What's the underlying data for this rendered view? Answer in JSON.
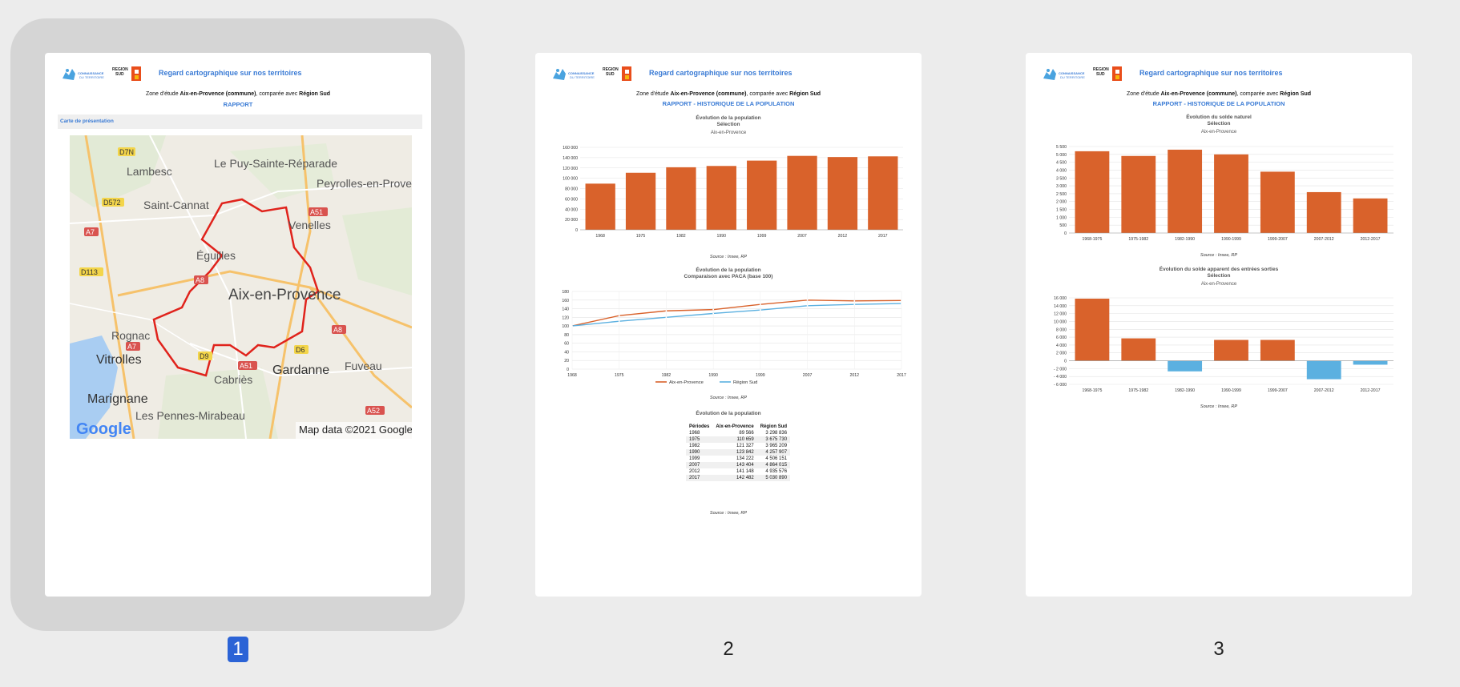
{
  "header": {
    "title": "Regard cartographique sur nos territoires",
    "logo1_text": "CONNAISSANCE DU TERRITOIRE",
    "logo2_text": "REGION SUD"
  },
  "zone": {
    "prefix": "Zone d'étude",
    "commune": "Aix-en-Provence (commune)",
    "middle": ", comparée avec",
    "region": "Région Sud"
  },
  "pages": [
    {
      "number": "1",
      "selected": true,
      "subtitle": "RAPPORT"
    },
    {
      "number": "2",
      "selected": false,
      "subtitle": "RAPPORT - HISTORIQUE DE LA POPULATION"
    },
    {
      "number": "3",
      "selected": false,
      "subtitle": "RAPPORT - HISTORIQUE DE LA POPULATION"
    }
  ],
  "page1": {
    "section_title": "Carte de présentation",
    "map": {
      "labels": [
        {
          "text": "Lambesc"
        },
        {
          "text": "Le Puy-Sainte-Réparade"
        },
        {
          "text": "Saint-Cannat"
        },
        {
          "text": "Peyrolles-en-Prove"
        },
        {
          "text": "Venelles"
        },
        {
          "text": "Éguilles"
        },
        {
          "text": "Aix-en-Provence"
        },
        {
          "text": "Rognac"
        },
        {
          "text": "Vitrolles"
        },
        {
          "text": "Cabriès"
        },
        {
          "text": "Gardanne"
        },
        {
          "text": "Fuveau"
        },
        {
          "text": "Marignane"
        },
        {
          "text": "Les Pennes-Mirabeau"
        }
      ],
      "road_badges": [
        {
          "text": "D7N",
          "color": "#f3d54a"
        },
        {
          "text": "D572",
          "color": "#f3d54a"
        },
        {
          "text": "A7",
          "color": "#d9534f"
        },
        {
          "text": "A51",
          "color": "#d9534f"
        },
        {
          "text": "D113",
          "color": "#f3d54a"
        },
        {
          "text": "A8",
          "color": "#d9534f"
        },
        {
          "text": "A8",
          "color": "#d9534f"
        },
        {
          "text": "A7",
          "color": "#d9534f"
        },
        {
          "text": "D9",
          "color": "#f3d54a"
        },
        {
          "text": "D6",
          "color": "#f3d54a"
        },
        {
          "text": "A51",
          "color": "#d9534f"
        },
        {
          "text": "A52",
          "color": "#d9534f"
        }
      ],
      "attribution": "Map data ©2021 Google",
      "logo": "Google"
    }
  },
  "page2": {
    "chart1_title": "Évolution de la population",
    "chart1_subtitle": "Sélection",
    "chart1_place": "Aix-en-Provence",
    "chart2_title": "Évolution de la population",
    "chart2_subtitle": "Comparaison avec PACA (base 100)",
    "table_title": "Évolution de la population",
    "source": "Source : Insee, RP",
    "table_headers": [
      "Périodes",
      "Aix-en-Provence",
      "Région Sud"
    ],
    "table_rows": [
      [
        "1968",
        "89 566",
        "3 298 836"
      ],
      [
        "1975",
        "110 659",
        "3 675 730"
      ],
      [
        "1982",
        "121 327",
        "3 965 209"
      ],
      [
        "1990",
        "123 842",
        "4 257 907"
      ],
      [
        "1999",
        "134 222",
        "4 506 151"
      ],
      [
        "2007",
        "143 404",
        "4 864 015"
      ],
      [
        "2012",
        "141 148",
        "4 935 576"
      ],
      [
        "2017",
        "142 482",
        "5 030 890"
      ]
    ]
  },
  "page3": {
    "chart1_title": "Évolution du solde naturel",
    "chart1_subtitle": "Sélection",
    "chart1_place": "Aix-en-Provence",
    "chart2_title": "Évolution du solde apparent des entrées sorties",
    "chart2_subtitle": "Sélection",
    "chart2_place": "Aix-en-Provence",
    "source": "Source : Insee, RP"
  },
  "colors": {
    "orange": "#d9622b",
    "blue": "#5bb0e0",
    "link": "#3a7bd5",
    "selection": "#2b63d6"
  },
  "chart_data": [
    {
      "type": "bar",
      "title": "Évolution de la population",
      "categories": [
        "1968",
        "1975",
        "1982",
        "1990",
        "1999",
        "2007",
        "2012",
        "2017"
      ],
      "values": [
        89566,
        110659,
        121327,
        123842,
        134222,
        143404,
        141148,
        142482
      ],
      "ylim": [
        0,
        160000
      ],
      "yticks": [
        "0",
        "20 000",
        "40 000",
        "60 000",
        "80 000",
        "100 000",
        "120 000",
        "140 000",
        "160 000"
      ]
    },
    {
      "type": "line",
      "title": "Évolution de la population",
      "categories": [
        "1968",
        "1975",
        "1982",
        "1990",
        "1999",
        "2007",
        "2012",
        "2017"
      ],
      "series": [
        {
          "name": "Aix-en-Provence",
          "values": [
            100,
            124,
            135,
            138,
            150,
            160,
            158,
            159
          ]
        },
        {
          "name": "Région Sud",
          "values": [
            100,
            111,
            120,
            129,
            137,
            147,
            150,
            152
          ]
        }
      ],
      "ylim": [
        0,
        180
      ],
      "yticks": [
        "0",
        "20",
        "40",
        "60",
        "80",
        "100",
        "120",
        "140",
        "160",
        "180"
      ]
    },
    {
      "type": "bar",
      "title": "Évolution du solde naturel",
      "categories": [
        "1968-1975",
        "1975-1982",
        "1982-1990",
        "1990-1999",
        "1999-2007",
        "2007-2012",
        "2012-2017"
      ],
      "values": [
        5200,
        4900,
        5300,
        5000,
        3900,
        2600,
        2200
      ],
      "ylim": [
        0,
        5500
      ],
      "yticks": [
        "0",
        "500",
        "1 000",
        "1 500",
        "2 000",
        "2 500",
        "3 000",
        "3 500",
        "4 000",
        "4 500",
        "5 000",
        "5 500"
      ]
    },
    {
      "type": "bar",
      "title": "Évolution du solde apparent des entrées sorties",
      "categories": [
        "1968-1975",
        "1975-1982",
        "1982-1990",
        "1990-1999",
        "1999-2007",
        "2007-2012",
        "2012-2017"
      ],
      "values": [
        15800,
        5700,
        -2700,
        5300,
        5300,
        -4700,
        -1000
      ],
      "ylim": [
        -6000,
        16000
      ],
      "yticks": [
        "- 6 000",
        "- 4 000",
        "- 2 000",
        "0",
        "2 000",
        "4 000",
        "6 000",
        "8 000",
        "10 000",
        "12 000",
        "14 000",
        "16 000"
      ]
    }
  ]
}
